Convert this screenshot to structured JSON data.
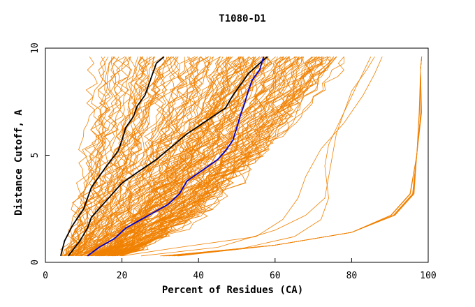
{
  "chart_data": {
    "type": "line",
    "title": "T1080-D1",
    "xlabel": "Percent of Residues (CA)",
    "ylabel": "Distance Cutoff, A",
    "xlim": [
      0,
      100
    ],
    "ylim": [
      0,
      10
    ],
    "x_ticks": [
      "0",
      "20",
      "40",
      "60",
      "80",
      "100"
    ],
    "y_ticks": [
      "0",
      "5",
      "10"
    ],
    "grid": false,
    "legend": "none",
    "colors": {
      "bundle": "#f08000",
      "black": "#000000",
      "blue": "#0000cc"
    },
    "highlighted_series": [
      {
        "color": "black",
        "points": [
          [
            4,
            0.3
          ],
          [
            5,
            1
          ],
          [
            7,
            1.7
          ],
          [
            8.5,
            2.1
          ],
          [
            10,
            2.5
          ],
          [
            11,
            3
          ],
          [
            12,
            3.5
          ],
          [
            14,
            4
          ],
          [
            16,
            4.5
          ],
          [
            19,
            5.2
          ],
          [
            20,
            5.7
          ],
          [
            21,
            6.3
          ],
          [
            23,
            6.8
          ],
          [
            24,
            7.3
          ],
          [
            26,
            7.8
          ],
          [
            27,
            8.3
          ],
          [
            28,
            8.8
          ],
          [
            29,
            9.3
          ],
          [
            31,
            9.6
          ]
        ]
      },
      {
        "color": "black",
        "points": [
          [
            6,
            0.3
          ],
          [
            9,
            1
          ],
          [
            11,
            1.6
          ],
          [
            12,
            2.1
          ],
          [
            14,
            2.5
          ],
          [
            17,
            3.1
          ],
          [
            20,
            3.7
          ],
          [
            24,
            4.2
          ],
          [
            29,
            4.8
          ],
          [
            33,
            5.4
          ],
          [
            37,
            6
          ],
          [
            42,
            6.6
          ],
          [
            47,
            7.2
          ],
          [
            49,
            7.8
          ],
          [
            51,
            8.3
          ],
          [
            53,
            8.8
          ],
          [
            56,
            9.3
          ],
          [
            58,
            9.6
          ]
        ]
      },
      {
        "color": "blue",
        "points": [
          [
            11,
            0.3
          ],
          [
            14,
            0.7
          ],
          [
            18,
            1.1
          ],
          [
            21,
            1.6
          ],
          [
            24,
            1.9
          ],
          [
            28,
            2.3
          ],
          [
            32,
            2.7
          ],
          [
            35,
            3.2
          ],
          [
            37,
            3.8
          ],
          [
            41,
            4.3
          ],
          [
            45,
            4.8
          ],
          [
            47,
            5.2
          ],
          [
            49,
            5.7
          ],
          [
            50,
            6.3
          ],
          [
            51,
            6.9
          ],
          [
            52,
            7.4
          ],
          [
            53,
            8
          ],
          [
            54,
            8.5
          ],
          [
            56,
            9
          ],
          [
            57,
            9.6
          ]
        ]
      }
    ]
  }
}
